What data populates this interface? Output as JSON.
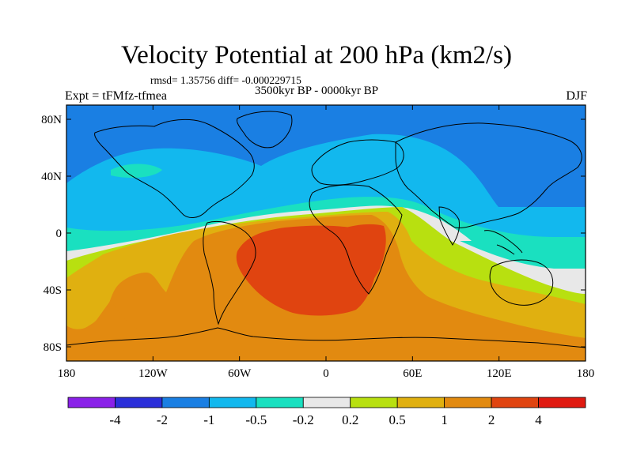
{
  "header": {
    "title": "Velocity Potential at 200 hPa (km2/s)",
    "stats": "rmsd= 1.35756 diff= -0.000229715",
    "period": "3500kyr BP - 0000kyr BP",
    "experiment": "Expt = tFMfz-tfmea",
    "season": "DJF"
  },
  "map": {
    "projection": "cylindrical-equidistant",
    "lon_range": [
      -180,
      180
    ],
    "lat_range": [
      -90,
      90
    ],
    "x_ticks": [
      {
        "lon": -180,
        "label": "180"
      },
      {
        "lon": -120,
        "label": "120W"
      },
      {
        "lon": -60,
        "label": "60W"
      },
      {
        "lon": 0,
        "label": "0"
      },
      {
        "lon": 60,
        "label": "60E"
      },
      {
        "lon": 120,
        "label": "120E"
      },
      {
        "lon": 180,
        "label": "180"
      }
    ],
    "y_ticks": [
      {
        "lat": 80,
        "label": "80N"
      },
      {
        "lat": 40,
        "label": "40N"
      },
      {
        "lat": 0,
        "label": "0"
      },
      {
        "lat": -40,
        "label": "40S"
      },
      {
        "lat": -80,
        "label": "80S"
      }
    ],
    "field_regions": [
      {
        "name": "band-below-neg-4",
        "color": "#8A21E8"
      },
      {
        "name": "band-neg-4-to-neg-2",
        "color": "#2B2FD9"
      },
      {
        "name": "band-neg-2-to-neg-1",
        "color": "#1A7FE3"
      },
      {
        "name": "band-neg-1-to-neg-0.5",
        "color": "#12B8EE"
      },
      {
        "name": "band-neg-0.5-to-neg-0.2",
        "color": "#1AE0C0"
      },
      {
        "name": "band-neg-0.2-to-0.2",
        "color": "#E8E8E8"
      },
      {
        "name": "band-0.2-to-0.5",
        "color": "#B8E010"
      },
      {
        "name": "band-0.5-to-1",
        "color": "#E0B010"
      },
      {
        "name": "band-1-to-2",
        "color": "#E28A10"
      },
      {
        "name": "band-2-to-4",
        "color": "#E04410"
      }
    ]
  },
  "colorbar": {
    "colors": [
      "#8A21E8",
      "#2B2FD9",
      "#1A7FE3",
      "#12B8EE",
      "#1AE0C0",
      "#E8E8E8",
      "#B8E010",
      "#E0B010",
      "#E28A10",
      "#E04410",
      "#E01A10"
    ],
    "labels": [
      "-4",
      "-2",
      "-1",
      "-0.5",
      "-0.2",
      "0.2",
      "0.5",
      "1",
      "2",
      "4"
    ]
  }
}
